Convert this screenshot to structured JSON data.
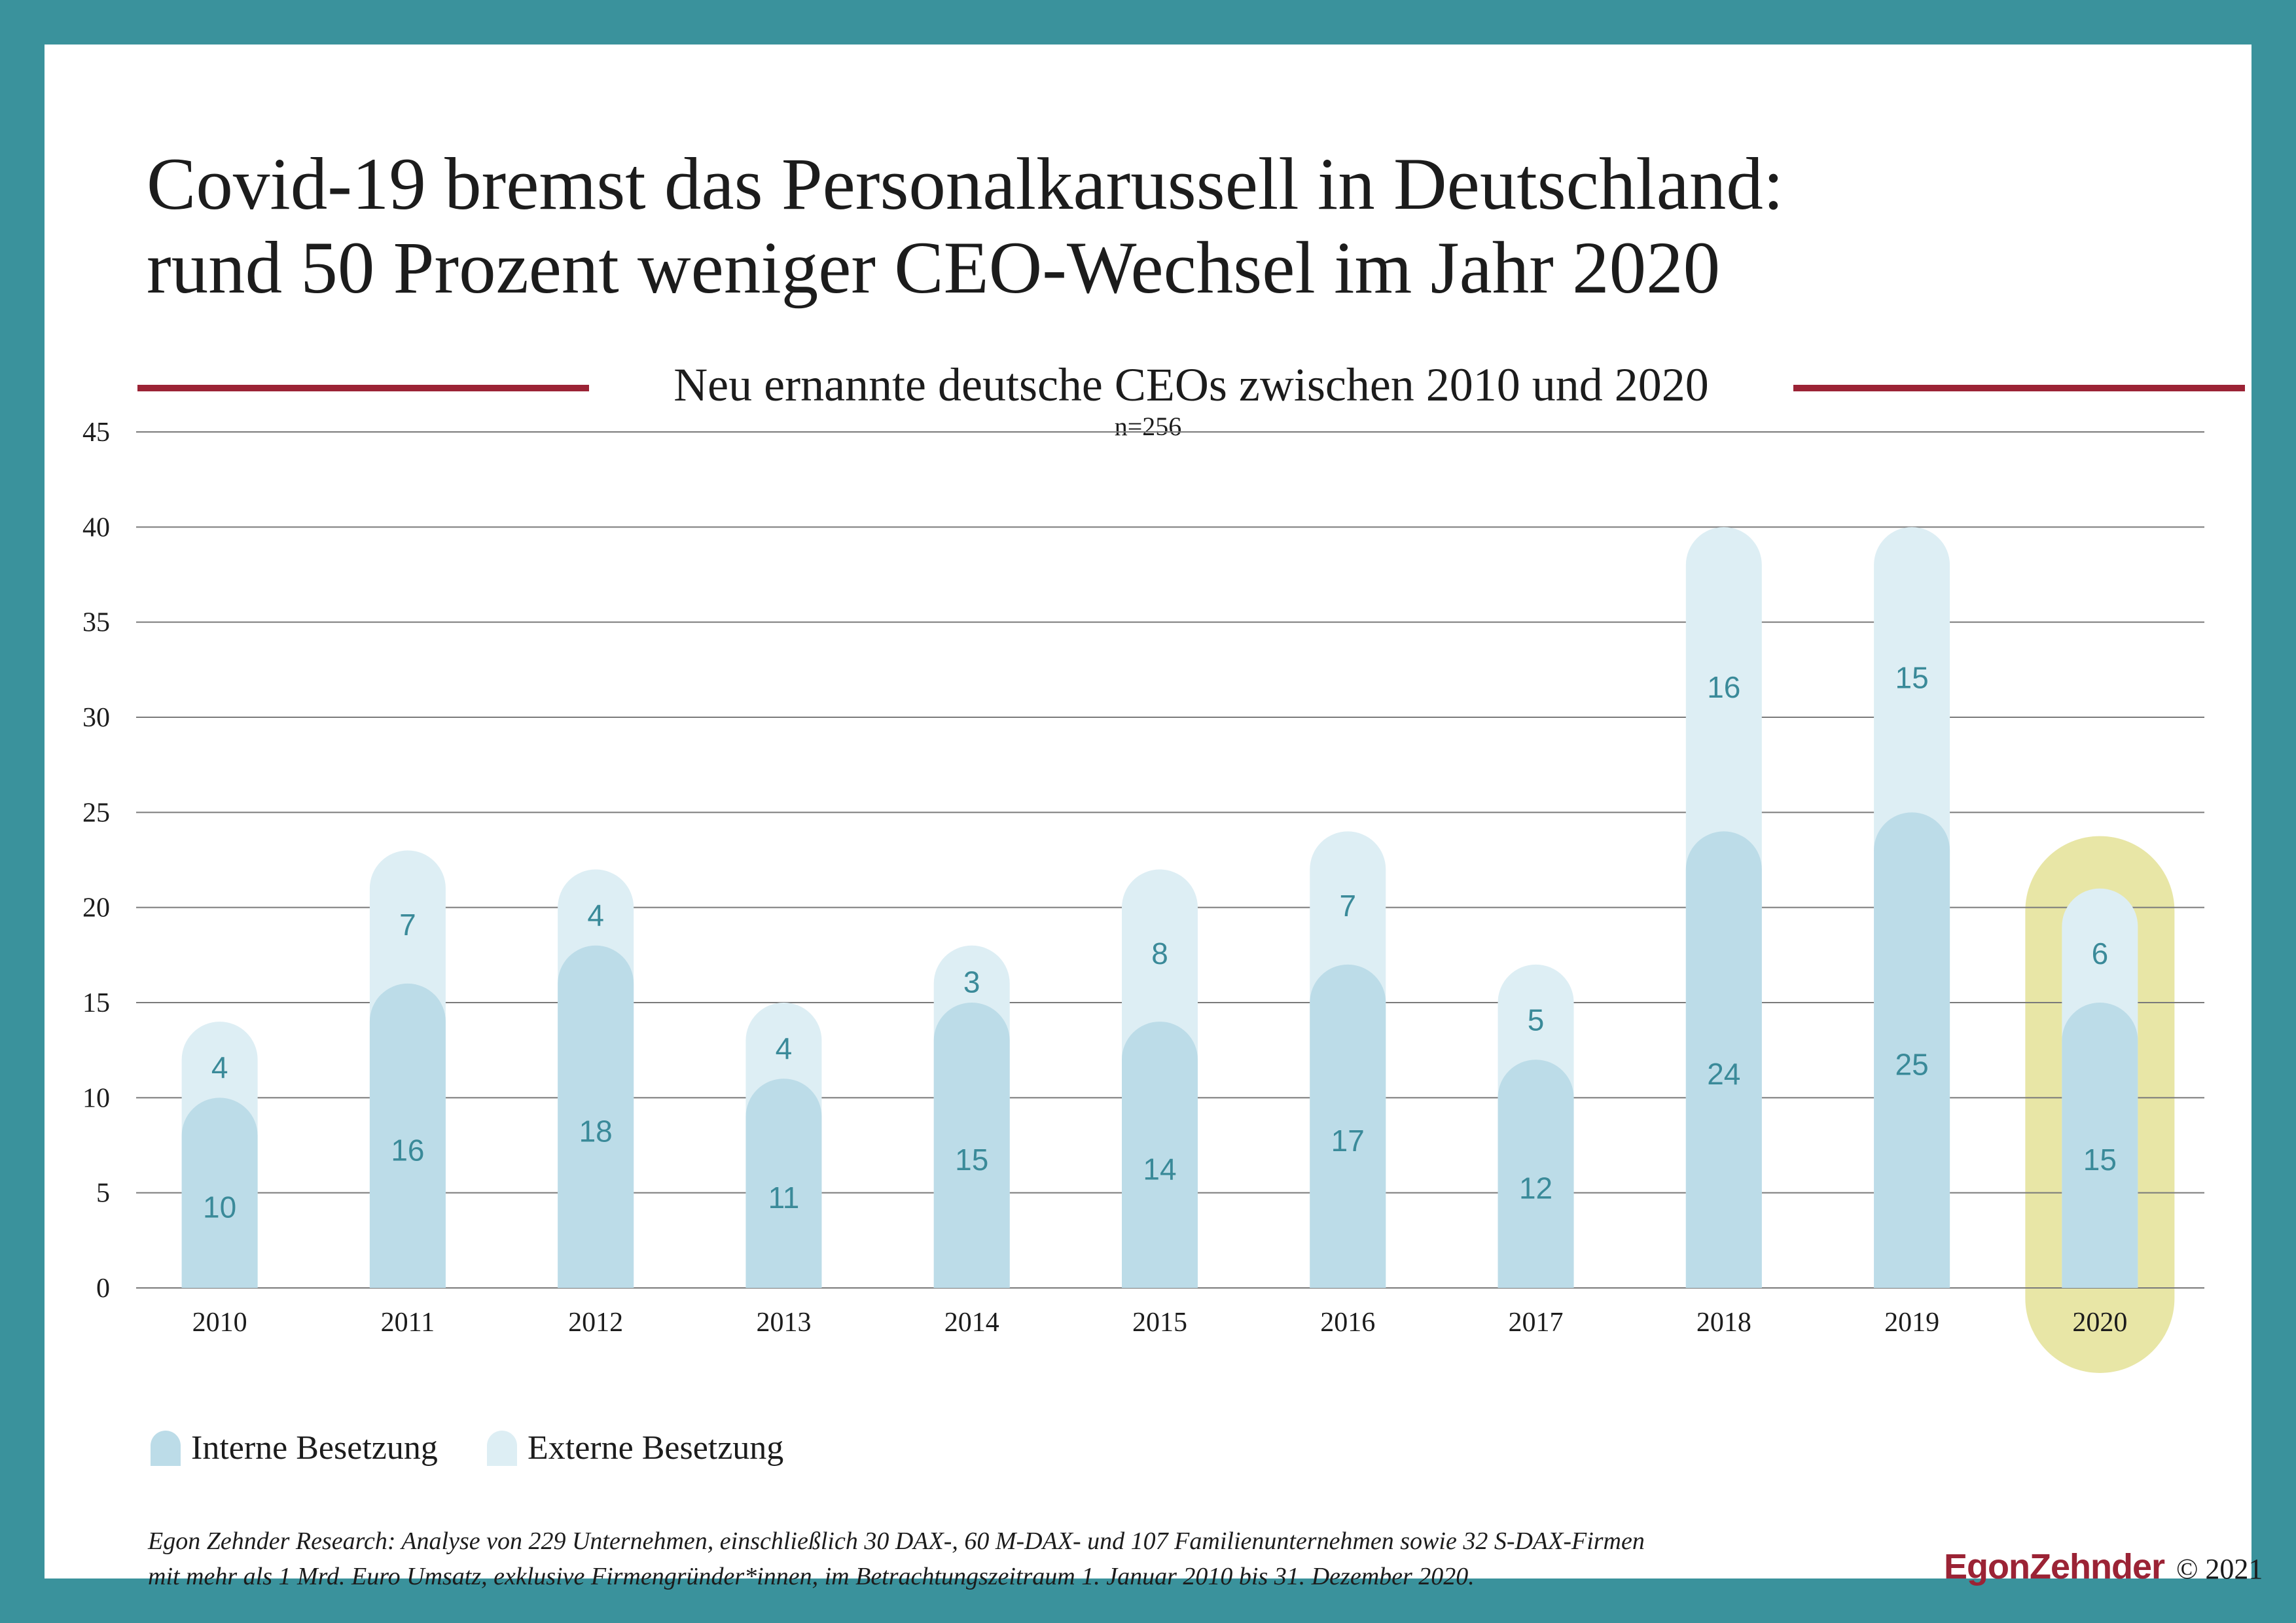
{
  "header": {
    "title_line1": "Covid-19 bremst das Personalkarussell in Deutschland:",
    "title_line2": "rund 50 Prozent weniger CEO-Wechsel im Jahr 2020",
    "subtitle": "Neu ernannte deutsche CEOs zwischen 2010 und 2020",
    "sample": "n=256"
  },
  "colors": {
    "background_frame": "#3a929c",
    "interne": "#bcdce8",
    "externe": "#ddeef4",
    "value_text": "#3a8a99",
    "rule": "#9b2335",
    "highlight": "#e8e6a6",
    "grid": "#7a7a7a"
  },
  "chart_data": {
    "type": "bar",
    "stacked": true,
    "title": "Neu ernannte deutsche CEOs zwischen 2010 und 2020",
    "subtitle": "n=256",
    "categories": [
      "2010",
      "2011",
      "2012",
      "2013",
      "2014",
      "2015",
      "2016",
      "2017",
      "2018",
      "2019",
      "2020"
    ],
    "series": [
      {
        "name": "Interne Besetzung",
        "values": [
          10,
          16,
          18,
          11,
          15,
          14,
          17,
          12,
          24,
          25,
          15
        ]
      },
      {
        "name": "Externe Besetzung",
        "values": [
          4,
          7,
          4,
          4,
          3,
          8,
          7,
          5,
          16,
          15,
          6
        ]
      }
    ],
    "yticks": [
      0,
      5,
      10,
      15,
      20,
      25,
      30,
      35,
      40,
      45
    ],
    "ylim": [
      0,
      45
    ],
    "xlabel": "",
    "ylabel": "",
    "grid": true,
    "highlight_category": "2020",
    "legend_position": "bottom-left"
  },
  "legend": {
    "interne_label": "Interne Besetzung",
    "externe_label": "Externe Besetzung"
  },
  "footer": {
    "note_line1": "Egon Zehnder Research: Analyse von 229 Unternehmen, einschließlich 30 DAX-, 60 M-DAX- und 107 Familienunternehmen sowie 32 S-DAX-Firmen",
    "note_line2": "mit mehr als 1 Mrd. Euro Umsatz, exklusive Firmengründer*innen, im Betrachtungszeitraum 1. Januar 2010 bis 31. Dezember 2020.",
    "brand": "EgonZehnder",
    "copyright": "© 2021"
  }
}
